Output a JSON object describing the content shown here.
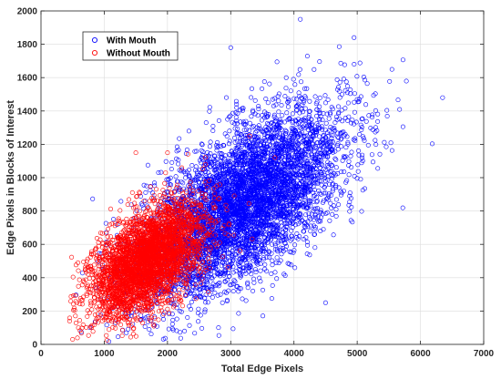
{
  "chart_data": {
    "type": "scatter",
    "title": "",
    "xlabel": "Total Edge Pixels",
    "ylabel": "Edge Pixels in Blocks of Interest",
    "xlim": [
      0,
      7000
    ],
    "ylim": [
      0,
      2000
    ],
    "x_ticks": [
      0,
      1000,
      2000,
      3000,
      4000,
      5000,
      6000,
      7000
    ],
    "y_ticks": [
      0,
      200,
      400,
      600,
      800,
      1000,
      1200,
      1400,
      1600,
      1800,
      2000
    ],
    "x_tick_labels": [
      "0",
      "1000",
      "2000",
      "3000",
      "4000",
      "5000",
      "6000",
      "7000"
    ],
    "y_tick_labels": [
      "0",
      "200",
      "400",
      "600",
      "800",
      "1000",
      "1200",
      "1400",
      "1600",
      "1800",
      "2000"
    ],
    "grid": true,
    "legend_position": "top-left",
    "series": [
      {
        "name": "With Mouth",
        "color": "#0000ff",
        "marker": "open-circle",
        "center": [
          3200,
          850
        ],
        "spread": [
          800,
          280
        ],
        "correlation": 0.62,
        "outliers": [
          [
            4100,
            1950
          ],
          [
            6350,
            1480
          ],
          [
            5550,
            1650
          ],
          [
            4950,
            1840
          ],
          [
            3000,
            1780
          ],
          [
            4500,
            250
          ]
        ]
      },
      {
        "name": "Without Mouth",
        "color": "#ff0000",
        "marker": "open-circle",
        "center": [
          1650,
          500
        ],
        "spread": [
          450,
          170
        ],
        "correlation": 0.55,
        "outliers": [
          [
            500,
            30
          ],
          [
            1500,
            1150
          ],
          [
            2000,
            1150
          ],
          [
            3300,
            1250
          ],
          [
            3700,
            1120
          ],
          [
            2600,
            1080
          ]
        ]
      }
    ]
  }
}
